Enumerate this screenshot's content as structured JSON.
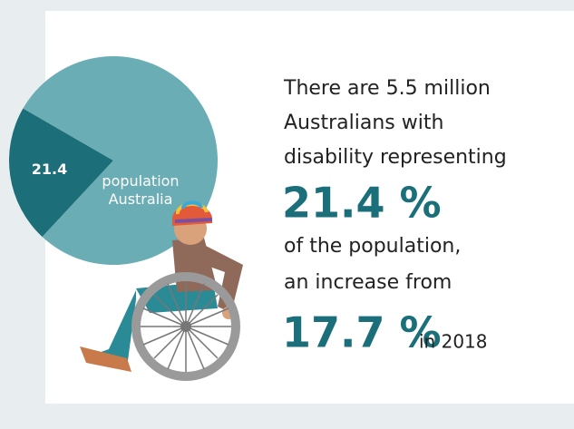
{
  "chart_data": {
    "type": "pie",
    "categories": [
      null,
      "population Australia"
    ],
    "values": [
      21.4,
      78.6
    ],
    "colors": [
      "#1c6e79",
      "#6aadb5"
    ]
  },
  "text": {
    "intro_lines": [
      "There are 5.5 million",
      "Australians with",
      "disability representing"
    ],
    "highlight_1": "21.4 %",
    "middle_lines": [
      "of the population,",
      "an increase from"
    ],
    "highlight_2": "17.7 %",
    "suffix": "in 2018"
  }
}
